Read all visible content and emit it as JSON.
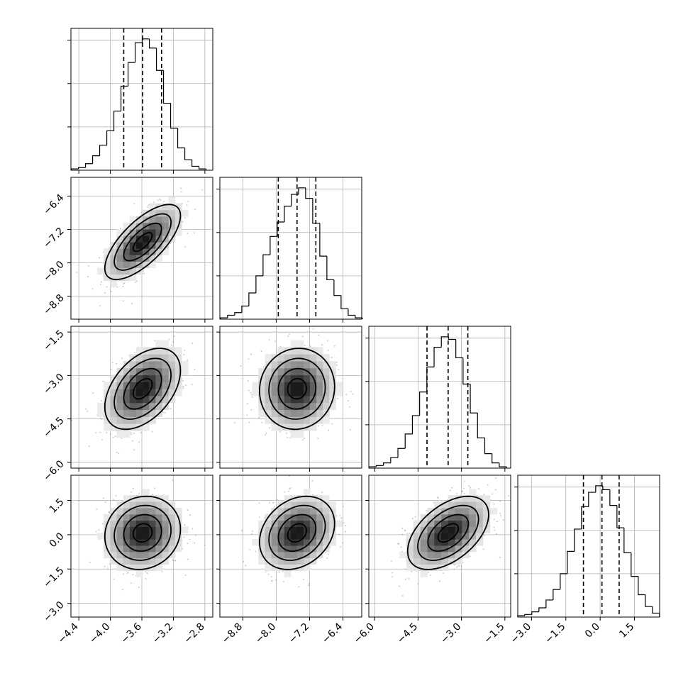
{
  "chart_data": {
    "type": "corner",
    "title": "",
    "grid": true,
    "params": [
      {
        "index": 0,
        "range": [
          -4.5,
          -2.7
        ],
        "ticks": [
          -4.4,
          -4.0,
          -3.6,
          -3.2,
          -2.8
        ],
        "tick_labels": [
          "−4.4",
          "−4.0",
          "−3.6",
          "−3.2",
          "−2.8"
        ],
        "quantiles": [
          -3.83,
          -3.59,
          -3.35
        ],
        "hist": [
          {
            "x": -4.45,
            "y": 0.01
          },
          {
            "x": -4.36,
            "y": 0.02
          },
          {
            "x": -4.27,
            "y": 0.05
          },
          {
            "x": -4.18,
            "y": 0.11
          },
          {
            "x": -4.09,
            "y": 0.19
          },
          {
            "x": -4.0,
            "y": 0.3
          },
          {
            "x": -3.91,
            "y": 0.45
          },
          {
            "x": -3.82,
            "y": 0.64
          },
          {
            "x": -3.73,
            "y": 0.82
          },
          {
            "x": -3.64,
            "y": 0.97
          },
          {
            "x": -3.55,
            "y": 1.0
          },
          {
            "x": -3.46,
            "y": 0.93
          },
          {
            "x": -3.37,
            "y": 0.76
          },
          {
            "x": -3.28,
            "y": 0.51
          },
          {
            "x": -3.19,
            "y": 0.32
          },
          {
            "x": -3.1,
            "y": 0.17
          },
          {
            "x": -3.01,
            "y": 0.08
          },
          {
            "x": -2.92,
            "y": 0.03
          },
          {
            "x": -2.83,
            "y": 0.01
          }
        ]
      },
      {
        "index": 1,
        "range": [
          -9.35,
          -5.95
        ],
        "ticks": [
          -8.8,
          -8.0,
          -7.2,
          -6.4
        ],
        "tick_labels": [
          "−8.8",
          "−8.0",
          "−7.2",
          "−6.4"
        ],
        "quantiles": [
          -7.95,
          -7.5,
          -7.05
        ],
        "hist": [
          {
            "x": -9.25,
            "y": 0.01
          },
          {
            "x": -9.08,
            "y": 0.03
          },
          {
            "x": -8.91,
            "y": 0.05
          },
          {
            "x": -8.74,
            "y": 0.1
          },
          {
            "x": -8.57,
            "y": 0.2
          },
          {
            "x": -8.4,
            "y": 0.33
          },
          {
            "x": -8.23,
            "y": 0.49
          },
          {
            "x": -8.06,
            "y": 0.63
          },
          {
            "x": -7.89,
            "y": 0.74
          },
          {
            "x": -7.72,
            "y": 0.86
          },
          {
            "x": -7.55,
            "y": 0.95
          },
          {
            "x": -7.38,
            "y": 1.0
          },
          {
            "x": -7.21,
            "y": 0.92
          },
          {
            "x": -7.04,
            "y": 0.73
          },
          {
            "x": -6.87,
            "y": 0.48
          },
          {
            "x": -6.7,
            "y": 0.3
          },
          {
            "x": -6.53,
            "y": 0.18
          },
          {
            "x": -6.36,
            "y": 0.08
          },
          {
            "x": -6.19,
            "y": 0.03
          },
          {
            "x": -6.02,
            "y": 0.01
          }
        ]
      },
      {
        "index": 2,
        "range": [
          -6.2,
          -1.3
        ],
        "ticks": [
          -6.0,
          -4.5,
          -3.0,
          -1.5
        ],
        "tick_labels": [
          "−6.0",
          "−4.5",
          "−3.0",
          "−1.5"
        ],
        "quantiles": [
          -4.19,
          -3.46,
          -2.78
        ],
        "hist": [
          {
            "x": -6.07,
            "y": 0.01
          },
          {
            "x": -5.82,
            "y": 0.02
          },
          {
            "x": -5.57,
            "y": 0.04
          },
          {
            "x": -5.32,
            "y": 0.08
          },
          {
            "x": -5.07,
            "y": 0.15
          },
          {
            "x": -4.82,
            "y": 0.26
          },
          {
            "x": -4.57,
            "y": 0.4
          },
          {
            "x": -4.32,
            "y": 0.58
          },
          {
            "x": -4.07,
            "y": 0.77
          },
          {
            "x": -3.82,
            "y": 0.92
          },
          {
            "x": -3.57,
            "y": 1.0
          },
          {
            "x": -3.32,
            "y": 0.98
          },
          {
            "x": -3.07,
            "y": 0.84
          },
          {
            "x": -2.82,
            "y": 0.64
          },
          {
            "x": -2.57,
            "y": 0.42
          },
          {
            "x": -2.32,
            "y": 0.23
          },
          {
            "x": -2.07,
            "y": 0.11
          },
          {
            "x": -1.82,
            "y": 0.04
          },
          {
            "x": -1.57,
            "y": 0.01
          }
        ]
      },
      {
        "index": 3,
        "range": [
          -3.6,
          2.6
        ],
        "ticks": [
          -3.0,
          -1.5,
          0.0,
          1.5
        ],
        "tick_labels": [
          "−3.0",
          "−1.5",
          "0.0",
          "1.5"
        ],
        "quantiles": [
          -0.73,
          0.08,
          0.83
        ],
        "hist": [
          {
            "x": -3.45,
            "y": 0.01
          },
          {
            "x": -3.14,
            "y": 0.02
          },
          {
            "x": -2.83,
            "y": 0.04
          },
          {
            "x": -2.52,
            "y": 0.07
          },
          {
            "x": -2.21,
            "y": 0.13
          },
          {
            "x": -1.9,
            "y": 0.21
          },
          {
            "x": -1.59,
            "y": 0.33
          },
          {
            "x": -1.28,
            "y": 0.5
          },
          {
            "x": -0.97,
            "y": 0.67
          },
          {
            "x": -0.66,
            "y": 0.84
          },
          {
            "x": -0.35,
            "y": 0.95
          },
          {
            "x": -0.04,
            "y": 1.0
          },
          {
            "x": 0.27,
            "y": 0.97
          },
          {
            "x": 0.58,
            "y": 0.85
          },
          {
            "x": 0.89,
            "y": 0.68
          },
          {
            "x": 1.2,
            "y": 0.49
          },
          {
            "x": 1.51,
            "y": 0.31
          },
          {
            "x": 1.82,
            "y": 0.17
          },
          {
            "x": 2.13,
            "y": 0.08
          },
          {
            "x": 2.44,
            "y": 0.03
          }
        ]
      }
    ],
    "pairs": [
      {
        "row": 1,
        "col": 0,
        "mean": [
          -3.59,
          -7.5
        ],
        "sd": [
          0.24,
          0.45
        ],
        "rho": 0.7
      },
      {
        "row": 2,
        "col": 0,
        "mean": [
          -3.59,
          -3.46
        ],
        "sd": [
          0.24,
          0.7
        ],
        "rho": 0.45
      },
      {
        "row": 2,
        "col": 1,
        "mean": [
          -7.5,
          -3.46
        ],
        "sd": [
          0.45,
          0.7
        ],
        "rho": 0.05
      },
      {
        "row": 3,
        "col": 0,
        "mean": [
          -3.59,
          0.08
        ],
        "sd": [
          0.24,
          0.8
        ],
        "rho": 0.1
      },
      {
        "row": 3,
        "col": 1,
        "mean": [
          -7.5,
          0.08
        ],
        "sd": [
          0.45,
          0.8
        ],
        "rho": 0.25
      },
      {
        "row": 3,
        "col": 2,
        "mean": [
          -3.46,
          0.08
        ],
        "sd": [
          0.7,
          0.8
        ],
        "rho": 0.5
      }
    ]
  }
}
